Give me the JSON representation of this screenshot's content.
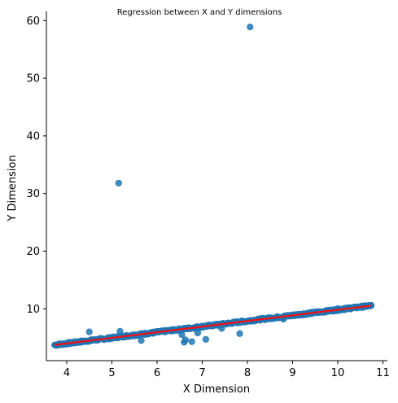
{
  "chart_data": {
    "type": "scatter",
    "title": "Regression between X and Y dimensions",
    "xlabel": "X Dimension",
    "ylabel": "Y Dimension",
    "xlim": [
      3.55,
      11.1
    ],
    "ylim": [
      1.0,
      61.6
    ],
    "xticks": [
      4,
      5,
      6,
      7,
      8,
      9,
      10,
      11
    ],
    "yticks": [
      10,
      20,
      30,
      40,
      50,
      60
    ],
    "grid": false,
    "legend": "none",
    "colors": {
      "points": "#1f77b4",
      "regression_line": "#e8141c"
    },
    "regression_line": {
      "x": [
        3.73,
        10.74
      ],
      "y": [
        3.72,
        10.55
      ]
    },
    "series": [
      {
        "main_band": {
          "x_start": 3.73,
          "x_end": 10.74,
          "slope": 0.974,
          "intercept": 0.09
        },
        "points": [
          {
            "x": 5.15,
            "y": 31.8
          },
          {
            "x": 8.06,
            "y": 58.9
          },
          {
            "x": 10.74,
            "y": 10.55
          },
          {
            "x": 4.5,
            "y": 6.0
          },
          {
            "x": 5.18,
            "y": 6.1
          },
          {
            "x": 5.65,
            "y": 4.5
          },
          {
            "x": 6.6,
            "y": 4.2
          },
          {
            "x": 6.63,
            "y": 4.6
          },
          {
            "x": 6.77,
            "y": 4.3
          },
          {
            "x": 6.9,
            "y": 5.8
          },
          {
            "x": 7.08,
            "y": 4.7
          },
          {
            "x": 7.83,
            "y": 5.7
          },
          {
            "x": 7.43,
            "y": 6.6
          },
          {
            "x": 6.55,
            "y": 5.5
          },
          {
            "x": 8.8,
            "y": 8.2
          },
          {
            "x": 9.85,
            "y": 9.8
          },
          {
            "x": 10.0,
            "y": 10.0
          },
          {
            "x": 10.15,
            "y": 10.1
          },
          {
            "x": 10.3,
            "y": 10.2
          },
          {
            "x": 9.6,
            "y": 9.5
          }
        ]
      }
    ]
  }
}
